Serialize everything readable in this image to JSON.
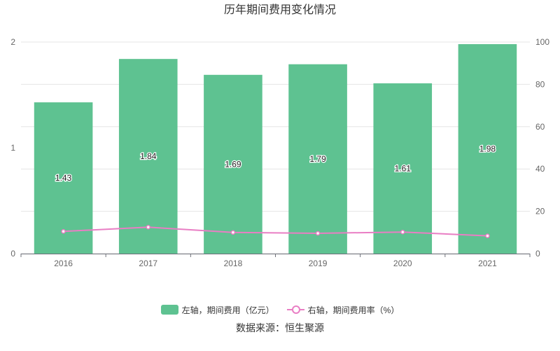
{
  "chart_data": {
    "type": "bar",
    "title": "历年期间费用变化情况",
    "categories": [
      "2016",
      "2017",
      "2018",
      "2019",
      "2020",
      "2021"
    ],
    "series": [
      {
        "name": "左轴，期间费用（亿元）",
        "type": "bar",
        "axis": "left",
        "values": [
          1.43,
          1.84,
          1.69,
          1.79,
          1.61,
          1.98
        ],
        "labels": [
          "1.43",
          "1.84",
          "1.69",
          "1.79",
          "1.61",
          "1.98"
        ]
      },
      {
        "name": "右轴，期间费用率（%）",
        "type": "line",
        "axis": "right",
        "values": [
          10.5,
          12.5,
          10.0,
          9.6,
          10.2,
          8.4
        ]
      }
    ],
    "y_left": {
      "min": 0,
      "max": 2,
      "ticks": [
        "0",
        "1",
        "2"
      ]
    },
    "y_right": {
      "min": 0,
      "max": 100,
      "ticks": [
        "0",
        "20",
        "40",
        "60",
        "80",
        "100"
      ]
    },
    "grid": true,
    "legend_position": "bottom-center"
  },
  "colors": {
    "bar": "#5ec291",
    "line": "#e97ec4"
  },
  "source": "数据来源：恒生聚源"
}
